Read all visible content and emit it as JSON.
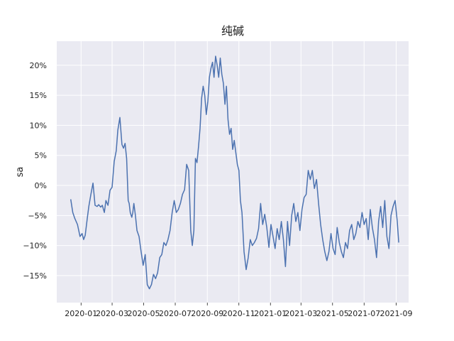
{
  "chart_data": {
    "type": "line",
    "title": "纯碱",
    "xlabel": "",
    "ylabel": "sa",
    "grid": true,
    "background_color": "#eaeaf2",
    "grid_color": "#ffffff",
    "line_color": "#4c72b0",
    "xlim": [
      "2019-11-15",
      "2021-09-25"
    ],
    "ylim": [
      -19.5,
      24
    ],
    "x_ticks": [
      {
        "date": "2020-01-01",
        "label": "2020-01"
      },
      {
        "date": "2020-03-01",
        "label": "2020-03"
      },
      {
        "date": "2020-05-01",
        "label": "2020-05"
      },
      {
        "date": "2020-07-01",
        "label": "2020-07"
      },
      {
        "date": "2020-09-01",
        "label": "2020-09"
      },
      {
        "date": "2020-11-01",
        "label": "2020-11"
      },
      {
        "date": "2021-01-01",
        "label": "2021-01"
      },
      {
        "date": "2021-03-01",
        "label": "2021-03"
      },
      {
        "date": "2021-05-01",
        "label": "2021-05"
      },
      {
        "date": "2021-07-01",
        "label": "2021-07"
      },
      {
        "date": "2021-09-01",
        "label": "2021-09"
      }
    ],
    "y_ticks": [
      {
        "value": -15,
        "label": "−15%"
      },
      {
        "value": -10,
        "label": "−10%"
      },
      {
        "value": -5,
        "label": "−5%"
      },
      {
        "value": 0,
        "label": "0%"
      },
      {
        "value": 5,
        "label": "5%"
      },
      {
        "value": 10,
        "label": "10%"
      },
      {
        "value": 15,
        "label": "15%"
      },
      {
        "value": 20,
        "label": "20%"
      }
    ],
    "series": [
      {
        "x": [
          "2019-12-12",
          "2019-12-16",
          "2019-12-20",
          "2019-12-25",
          "2019-12-30",
          "2020-01-03",
          "2020-01-06",
          "2020-01-09",
          "2020-01-13",
          "2020-01-16",
          "2020-01-20",
          "2020-01-24",
          "2020-01-28",
          "2020-02-01",
          "2020-02-04",
          "2020-02-08",
          "2020-02-11",
          "2020-02-15",
          "2020-02-18",
          "2020-02-22",
          "2020-02-26",
          "2020-03-01",
          "2020-03-05",
          "2020-03-09",
          "2020-03-12",
          "2020-03-16",
          "2020-03-20",
          "2020-03-23",
          "2020-03-26",
          "2020-03-29",
          "2020-04-01",
          "2020-04-03",
          "2020-04-05",
          "2020-04-08",
          "2020-04-10",
          "2020-04-12",
          "2020-04-15",
          "2020-04-18",
          "2020-04-22",
          "2020-04-26",
          "2020-04-30",
          "2020-05-04",
          "2020-05-08",
          "2020-05-12",
          "2020-05-16",
          "2020-05-20",
          "2020-05-24",
          "2020-05-28",
          "2020-06-01",
          "2020-06-05",
          "2020-06-09",
          "2020-06-13",
          "2020-06-17",
          "2020-06-21",
          "2020-06-25",
          "2020-06-29",
          "2020-07-03",
          "2020-07-07",
          "2020-07-11",
          "2020-07-15",
          "2020-07-19",
          "2020-07-23",
          "2020-07-27",
          "2020-07-31",
          "2020-08-03",
          "2020-08-06",
          "2020-08-09",
          "2020-08-12",
          "2020-08-15",
          "2020-08-18",
          "2020-08-21",
          "2020-08-24",
          "2020-08-27",
          "2020-08-30",
          "2020-09-02",
          "2020-09-05",
          "2020-09-08",
          "2020-09-11",
          "2020-09-14",
          "2020-09-17",
          "2020-09-20",
          "2020-09-23",
          "2020-09-26",
          "2020-09-29",
          "2020-10-02",
          "2020-10-05",
          "2020-10-08",
          "2020-10-11",
          "2020-10-14",
          "2020-10-17",
          "2020-10-20",
          "2020-10-23",
          "2020-10-26",
          "2020-10-29",
          "2020-11-01",
          "2020-11-04",
          "2020-11-07",
          "2020-11-11",
          "2020-11-15",
          "2020-11-19",
          "2020-11-23",
          "2020-11-27",
          "2020-12-01",
          "2020-12-05",
          "2020-12-09",
          "2020-12-13",
          "2020-12-17",
          "2020-12-21",
          "2020-12-25",
          "2020-12-29",
          "2021-01-02",
          "2021-01-06",
          "2021-01-10",
          "2021-01-14",
          "2021-01-18",
          "2021-01-22",
          "2021-01-26",
          "2021-01-30",
          "2021-02-03",
          "2021-02-07",
          "2021-02-11",
          "2021-02-15",
          "2021-02-19",
          "2021-02-23",
          "2021-02-27",
          "2021-03-03",
          "2021-03-07",
          "2021-03-11",
          "2021-03-15",
          "2021-03-19",
          "2021-03-23",
          "2021-03-27",
          "2021-03-31",
          "2021-04-04",
          "2021-04-08",
          "2021-04-12",
          "2021-04-16",
          "2021-04-20",
          "2021-04-24",
          "2021-04-28",
          "2021-05-02",
          "2021-05-06",
          "2021-05-10",
          "2021-05-14",
          "2021-05-18",
          "2021-05-22",
          "2021-05-26",
          "2021-05-30",
          "2021-06-03",
          "2021-06-07",
          "2021-06-11",
          "2021-06-15",
          "2021-06-19",
          "2021-06-23",
          "2021-06-27",
          "2021-07-01",
          "2021-07-05",
          "2021-07-09",
          "2021-07-13",
          "2021-07-17",
          "2021-07-21",
          "2021-07-25",
          "2021-07-29",
          "2021-08-02",
          "2021-08-06",
          "2021-08-10",
          "2021-08-14",
          "2021-08-18",
          "2021-08-22",
          "2021-08-26",
          "2021-08-30",
          "2021-09-03",
          "2021-09-06"
        ],
        "y": [
          -2.3,
          -4.5,
          -5.5,
          -6.5,
          -8.5,
          -8.0,
          -9.0,
          -8.3,
          -5.5,
          -3.5,
          -1.5,
          0.4,
          -3.3,
          -3.5,
          -3.2,
          -3.6,
          -3.3,
          -4.5,
          -2.5,
          -3.3,
          -0.8,
          -0.3,
          4.0,
          5.8,
          9.2,
          11.3,
          6.8,
          6.2,
          7.0,
          4.5,
          -2.5,
          -3.0,
          -4.5,
          -5.3,
          -4.5,
          -3.0,
          -5.0,
          -7.5,
          -8.5,
          -11.0,
          -13.3,
          -11.5,
          -16.5,
          -17.2,
          -16.5,
          -14.8,
          -15.5,
          -14.5,
          -12.0,
          -11.5,
          -9.5,
          -10.0,
          -9.0,
          -7.5,
          -4.5,
          -2.5,
          -4.5,
          -4.0,
          -3.0,
          -1.5,
          -0.7,
          3.5,
          2.5,
          -7.5,
          -10.0,
          -7.5,
          4.5,
          3.8,
          6.5,
          9.5,
          14.5,
          16.5,
          15.0,
          11.8,
          14.0,
          18.0,
          19.5,
          20.5,
          18.0,
          21.5,
          20.0,
          18.0,
          21.2,
          18.5,
          17.0,
          13.5,
          16.5,
          11.0,
          8.5,
          9.5,
          6.0,
          7.5,
          5.5,
          3.5,
          2.5,
          -2.5,
          -4.5,
          -11.0,
          -14.0,
          -12.0,
          -9.0,
          -10.0,
          -9.5,
          -8.8,
          -7.2,
          -3.0,
          -6.5,
          -4.8,
          -7.0,
          -10.3,
          -6.5,
          -8.5,
          -10.5,
          -7.2,
          -9.0,
          -6.0,
          -9.0,
          -13.5,
          -6.0,
          -10.0,
          -5.0,
          -3.0,
          -6.0,
          -4.5,
          -7.5,
          -4.0,
          -2.0,
          -1.5,
          2.5,
          1.0,
          2.5,
          -0.5,
          1.0,
          -3.0,
          -6.5,
          -9.0,
          -11.0,
          -12.5,
          -11.0,
          -8.0,
          -10.5,
          -11.5,
          -7.0,
          -9.5,
          -11.0,
          -12.0,
          -9.5,
          -10.5,
          -7.5,
          -6.5,
          -9.0,
          -8.0,
          -6.0,
          -7.0,
          -4.5,
          -6.5,
          -5.5,
          -9.0,
          -4.0,
          -7.0,
          -9.0,
          -12.0,
          -6.0,
          -3.5,
          -7.0,
          -2.5,
          -8.5,
          -10.5,
          -5.0,
          -3.5,
          -2.5,
          -6.0,
          -9.5
        ],
        "anchors_explicit": [
          [
            "2020-03-18",
            6.8
          ],
          [
            "2020-04-02",
            -2.5
          ]
        ]
      }
    ]
  }
}
